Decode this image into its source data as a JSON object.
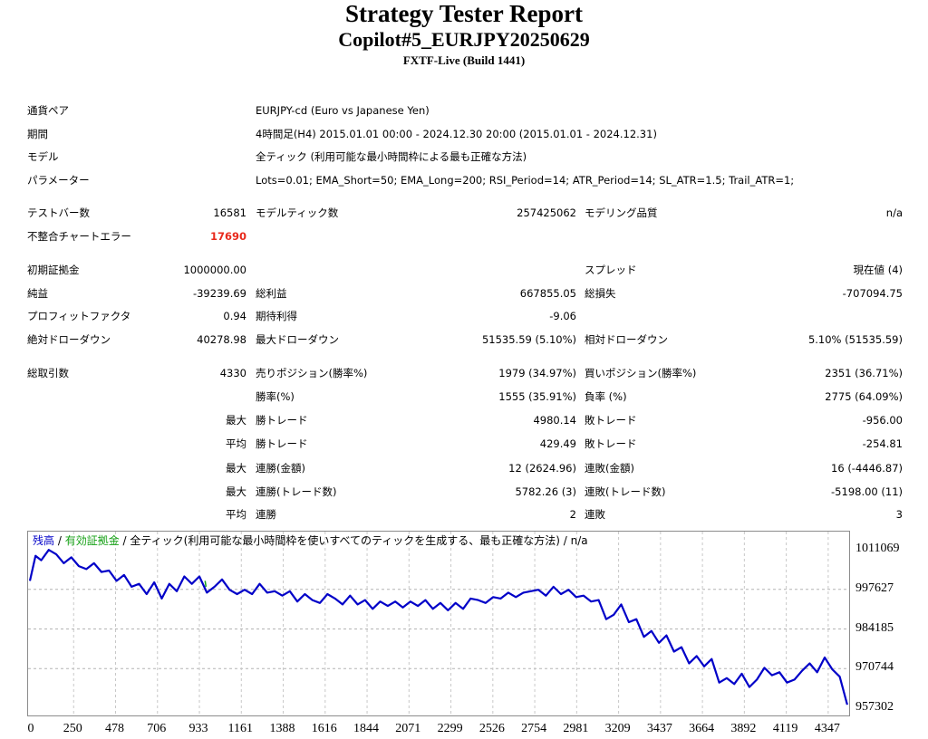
{
  "header": {
    "title": "Strategy Tester Report",
    "subtitle": "Copilot#5_EURJPY20250629",
    "server": "FXTF-Live (Build 1441)"
  },
  "info": {
    "symbol_label": "通貨ペア",
    "symbol_value": "EURJPY-cd (Euro vs Japanese Yen)",
    "period_label": "期間",
    "period_value": "4時間足(H4) 2015.01.01 00:00 - 2024.12.30 20:00 (2015.01.01 - 2024.12.31)",
    "model_label": "モデル",
    "model_value": "全ティック (利用可能な最小時間枠による最も正確な方法)",
    "params_label": "パラメーター",
    "params_value": "Lots=0.01; EMA_Short=50; EMA_Long=200; RSI_Period=14; ATR_Period=14; SL_ATR=1.5; Trail_ATR=1;"
  },
  "stats": {
    "bars_label": "テストバー数",
    "bars_value": "16581",
    "ticks_label": "モデルティック数",
    "ticks_value": "257425062",
    "quality_label": "モデリング品質",
    "quality_value": "n/a",
    "mismatch_label": "不整合チャートエラー",
    "mismatch_value": "17690",
    "deposit_label": "初期証拠金",
    "deposit_value": "1000000.00",
    "spread_label": "スプレッド",
    "spread_value": "現在値 (4)",
    "net_label": "純益",
    "net_value": "-39239.69",
    "gross_profit_label": "総利益",
    "gross_profit_value": "667855.05",
    "gross_loss_label": "総損失",
    "gross_loss_value": "-707094.75",
    "pf_label": "プロフィットファクタ",
    "pf_value": "0.94",
    "payoff_label": "期待利得",
    "payoff_value": "-9.06",
    "abs_dd_label": "絶対ドローダウン",
    "abs_dd_value": "40278.98",
    "max_dd_label": "最大ドローダウン",
    "max_dd_value": "51535.59 (5.10%)",
    "rel_dd_label": "相対ドローダウン",
    "rel_dd_value": "5.10% (51535.59)",
    "trades_label": "総取引数",
    "trades_value": "4330",
    "short_label": "売りポジション(勝率%)",
    "short_value": "1979 (34.97%)",
    "long_label": "買いポジション(勝率%)",
    "long_value": "2351 (36.71%)",
    "win_label": "勝率(%)",
    "win_value": "1555 (35.91%)",
    "loss_label": "負率 (%)",
    "loss_value": "2775 (64.09%)",
    "largest_prefix": "最大",
    "largest_win_label": "勝トレード",
    "largest_win_value": "4980.14",
    "largest_loss_label": "敗トレード",
    "largest_loss_value": "-956.00",
    "average_prefix": "平均",
    "avg_win_label": "勝トレード",
    "avg_win_value": "429.49",
    "avg_loss_label": "敗トレード",
    "avg_loss_value": "-254.81",
    "max_prefix_1": "最大",
    "max_cons_win_money_label": "連勝(金額)",
    "max_cons_win_money_value": "12 (2624.96)",
    "max_cons_loss_money_label": "連敗(金額)",
    "max_cons_loss_money_value": "16 (-4446.87)",
    "max_prefix_2": "最大",
    "max_cons_win_count_label": "連勝(トレード数)",
    "max_cons_win_count_value": "5782.26 (3)",
    "max_cons_loss_count_label": "連敗(トレード数)",
    "max_cons_loss_count_value": "-5198.00 (11)",
    "avg_prefix_2": "平均",
    "avg_cons_win_label": "連勝",
    "avg_cons_win_value": "2",
    "avg_cons_loss_label": "連敗",
    "avg_cons_loss_value": "3"
  },
  "chart_data": {
    "type": "line",
    "legend": {
      "balance": "残高",
      "sep1": " / ",
      "equity": "有効証拠金",
      "rest": " / 全ティック(利用可能な最小時間枠を使いすべてのティックを生成する、最も正確な方法) / n/a"
    },
    "yticks": [
      "1011069",
      "997627",
      "984185",
      "970744",
      "957302"
    ],
    "xticks": [
      "0",
      "250",
      "478",
      "706",
      "933",
      "1161",
      "1388",
      "1616",
      "1844",
      "2071",
      "2299",
      "2526",
      "2754",
      "2981",
      "3209",
      "3437",
      "3664",
      "3892",
      "4119",
      "4347"
    ],
    "ylim": [
      957302,
      1011069
    ],
    "xlim": [
      0,
      4350
    ],
    "series": [
      {
        "color": "#0000c8",
        "x": [
          0,
          30,
          60,
          100,
          140,
          180,
          220,
          260,
          300,
          340,
          380,
          420,
          460,
          500,
          540,
          580,
          620,
          660,
          700,
          740,
          780,
          820,
          860,
          900,
          940,
          980,
          1020,
          1060,
          1100,
          1140,
          1180,
          1220,
          1260,
          1300,
          1340,
          1380,
          1420,
          1460,
          1500,
          1540,
          1580,
          1620,
          1660,
          1700,
          1740,
          1780,
          1820,
          1860,
          1900,
          1940,
          1980,
          2020,
          2060,
          2100,
          2140,
          2180,
          2220,
          2260,
          2300,
          2340,
          2380,
          2420,
          2460,
          2500,
          2540,
          2580,
          2620,
          2660,
          2700,
          2740,
          2780,
          2820,
          2860,
          2900,
          2940,
          2980,
          3020,
          3060,
          3100,
          3140,
          3180,
          3220,
          3260,
          3300,
          3340,
          3380,
          3420,
          3460,
          3500,
          3540,
          3580,
          3620,
          3660,
          3700,
          3740,
          3780,
          3820,
          3860,
          3900,
          3940,
          3980,
          4020,
          4060,
          4100,
          4140,
          4180,
          4220,
          4260,
          4300,
          4340
        ],
        "y": [
          1000500,
          1009000,
          1007500,
          1011000,
          1009500,
          1006500,
          1008500,
          1005500,
          1004500,
          1006500,
          1003500,
          1004000,
          1000500,
          1002500,
          998500,
          999500,
          996000,
          1000000,
          994500,
          999500,
          997000,
          1002000,
          999500,
          1002000,
          996500,
          998500,
          1001000,
          997500,
          996000,
          997500,
          996000,
          999500,
          996500,
          997000,
          995500,
          997000,
          993500,
          996000,
          994000,
          993000,
          996000,
          994500,
          992500,
          995500,
          992500,
          994000,
          991000,
          993500,
          992000,
          993500,
          991500,
          993500,
          992000,
          994000,
          991000,
          993000,
          990500,
          993000,
          991000,
          994500,
          994000,
          993000,
          995000,
          994500,
          996500,
          995000,
          996500,
          997000,
          997500,
          995500,
          998500,
          996000,
          997500,
          995000,
          995500,
          993500,
          994000,
          987500,
          989000,
          992500,
          986500,
          987500,
          981500,
          983500,
          979500,
          982000,
          976500,
          978000,
          972500,
          975000,
          971500,
          974000,
          966000,
          967500,
          965500,
          969000,
          964500,
          967000,
          971000,
          968500,
          969500,
          966000,
          967000,
          970000,
          972500,
          969500,
          974500,
          970500,
          968000,
          958500
        ]
      },
      {
        "color": "#14a014",
        "x": [
          930,
          935
        ],
        "y": [
          1000500,
          998500
        ]
      }
    ]
  }
}
